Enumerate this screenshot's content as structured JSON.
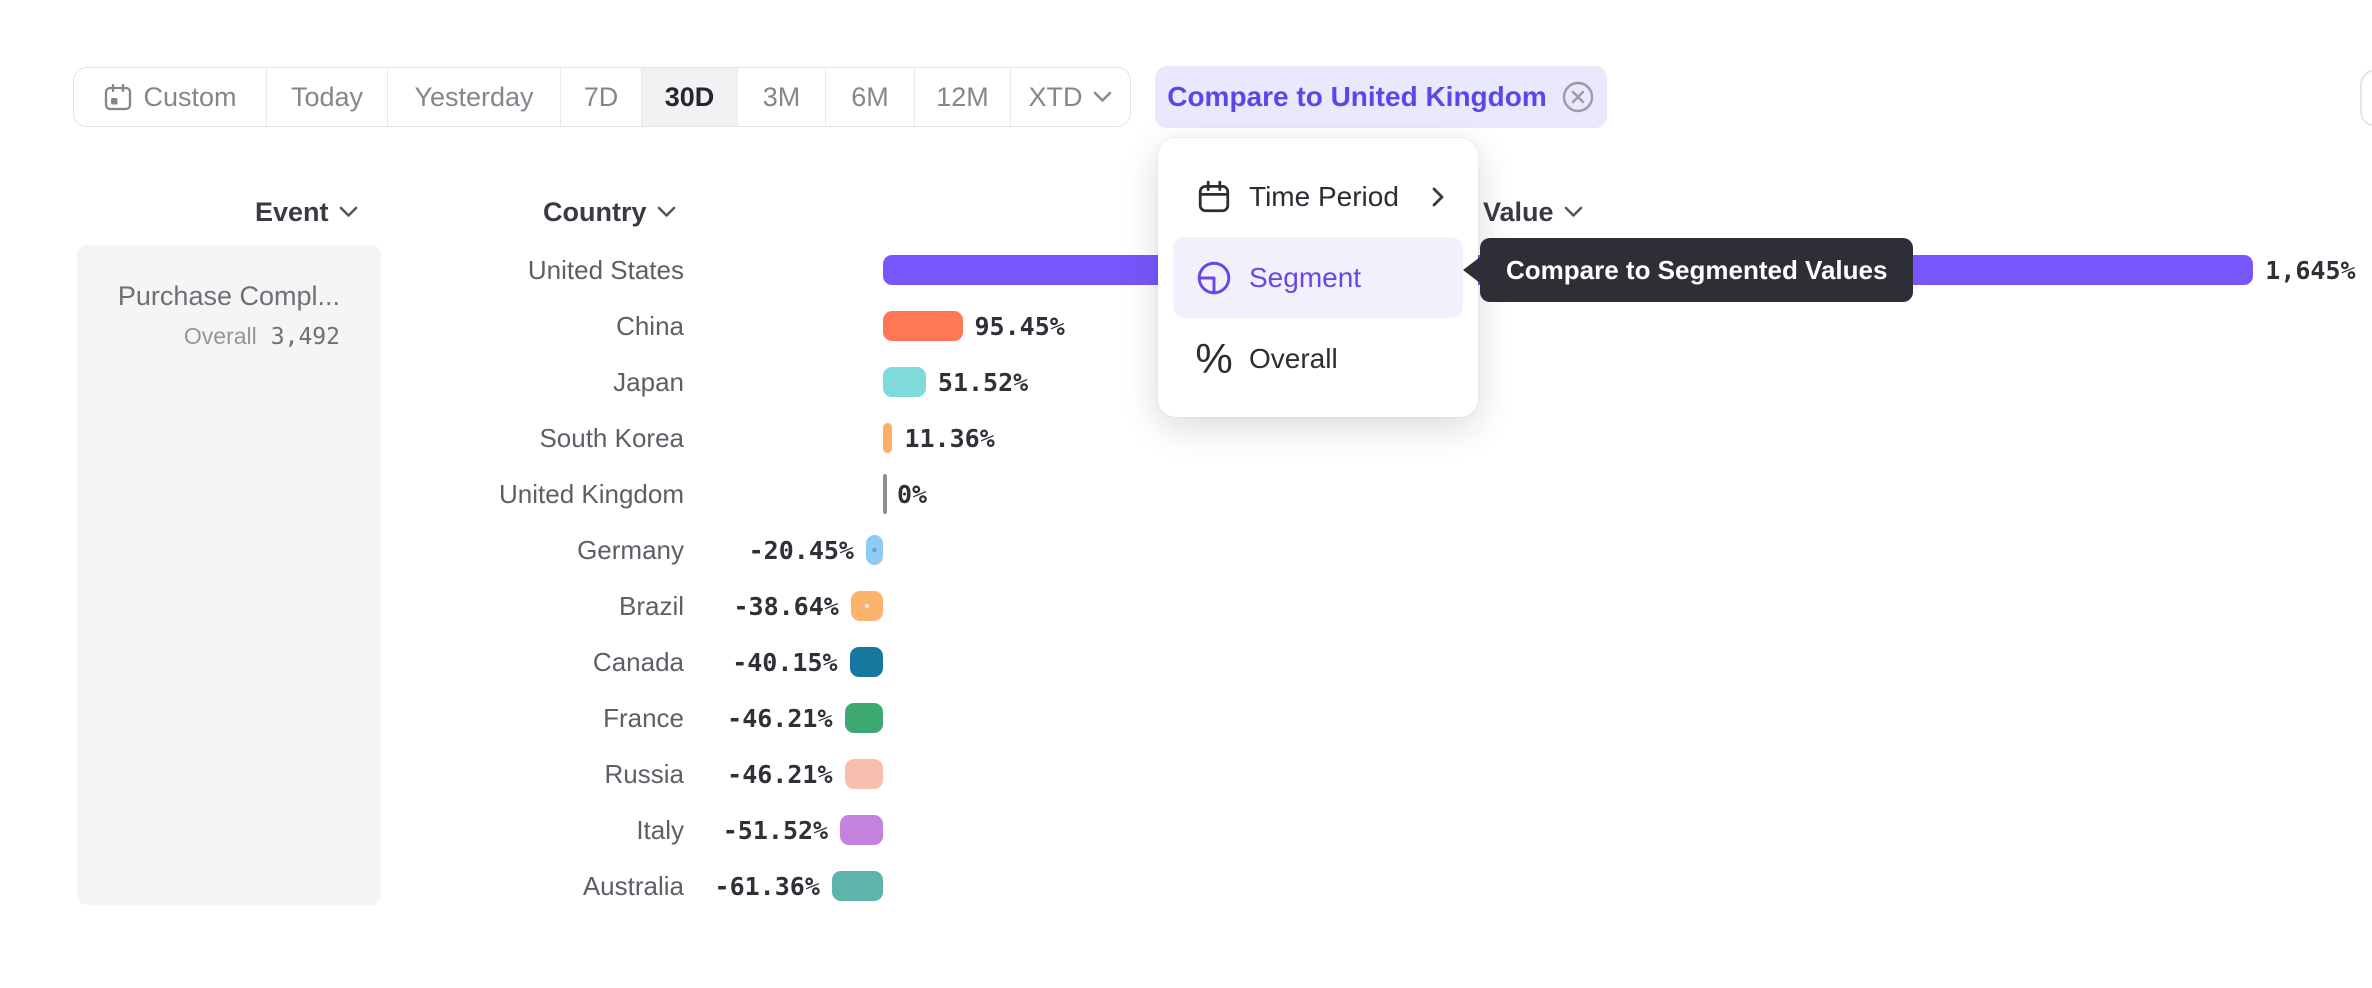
{
  "toolbar": {
    "items": [
      {
        "label": "Custom",
        "icon": "calendar-icon",
        "selected": false,
        "chevron": false
      },
      {
        "label": "Today",
        "icon": null,
        "selected": false,
        "chevron": false
      },
      {
        "label": "Yesterday",
        "icon": null,
        "selected": false,
        "chevron": false
      },
      {
        "label": "7D",
        "icon": null,
        "selected": false,
        "chevron": false
      },
      {
        "label": "30D",
        "icon": null,
        "selected": true,
        "chevron": false
      },
      {
        "label": "3M",
        "icon": null,
        "selected": false,
        "chevron": false
      },
      {
        "label": "6M",
        "icon": null,
        "selected": false,
        "chevron": false
      },
      {
        "label": "12M",
        "icon": null,
        "selected": false,
        "chevron": false
      },
      {
        "label": "XTD",
        "icon": null,
        "selected": false,
        "chevron": true
      }
    ]
  },
  "compare": {
    "label": "Compare to United Kingdom",
    "close_icon": "circle-x-icon"
  },
  "columns": {
    "event": "Event",
    "country": "Country",
    "value": "Value"
  },
  "event_panel": {
    "name": "Purchase Compl...",
    "metric_label": "Overall",
    "metric_value": "3,492"
  },
  "menu": {
    "items": [
      {
        "label": "Time Period",
        "icon": "calendar-icon",
        "has_submenu": true,
        "selected": false
      },
      {
        "label": "Segment",
        "icon": "segment-icon",
        "has_submenu": false,
        "selected": true
      },
      {
        "label": "Overall",
        "icon": "percent-icon",
        "has_submenu": false,
        "selected": false
      }
    ]
  },
  "tooltip": {
    "text": "Compare to Segmented Values"
  },
  "chart_data": {
    "type": "bar",
    "orientation": "horizontal",
    "unit": "%",
    "baseline": 0,
    "categories": [
      "United States",
      "China",
      "Japan",
      "South Korea",
      "United Kingdom",
      "Germany",
      "Brazil",
      "Canada",
      "France",
      "Russia",
      "Italy",
      "Australia"
    ],
    "values": [
      1645,
      95.45,
      51.52,
      11.36,
      0,
      -20.45,
      -38.64,
      -40.15,
      -46.21,
      -46.21,
      -51.52,
      -61.36
    ],
    "labels": [
      "1,645%",
      "95.45%",
      "51.52%",
      "11.36%",
      "0%",
      "-20.45%",
      "-38.64%",
      "-40.15%",
      "-46.21%",
      "-46.21%",
      "-51.52%",
      "-61.36%"
    ],
    "colors": [
      "#7757fb",
      "#ff7757",
      "#7edadb",
      "#fbae68",
      "#8e8e93",
      "#8fcaf2",
      "#fbb46c",
      "#17789f",
      "#3ea873",
      "#f9bfae",
      "#c481dd",
      "#5cb4ab"
    ],
    "patterns": [
      "solid",
      "solid",
      "solid",
      "solid",
      "zero-line",
      "dots",
      "dots",
      "solid",
      "solid",
      "solid",
      "solid",
      "solid"
    ],
    "dot_colors": [
      null,
      null,
      null,
      null,
      null,
      "#5a9fe0",
      "#ffdfeb",
      null,
      null,
      null,
      null,
      null
    ]
  },
  "accents": {
    "primary_purple": "#5748ea",
    "bar_purple": "#7757fb",
    "chip_bg": "#e9e8fc",
    "menu_highlight_bg": "#f3f0fd",
    "tooltip_bg": "#2e2e36",
    "panel_bg": "#f5f5f6"
  }
}
